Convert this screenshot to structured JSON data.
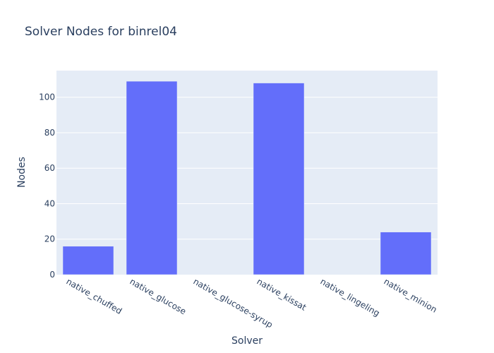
{
  "chart_data": {
    "type": "bar",
    "title": "Solver Nodes for binrel04",
    "xlabel": "Solver",
    "ylabel": "Nodes",
    "categories": [
      "native_chuffed",
      "native_glucose",
      "native_glucose-syrup",
      "native_kissat",
      "native_lingeling",
      "native_minion"
    ],
    "values": [
      16,
      109,
      0,
      108,
      0,
      24
    ],
    "ylim": [
      0,
      115
    ],
    "yticks": [
      0,
      20,
      40,
      60,
      80,
      100
    ],
    "grid": true,
    "bar_color": "#636efa",
    "plot_bg": "#e5ecf6"
  }
}
